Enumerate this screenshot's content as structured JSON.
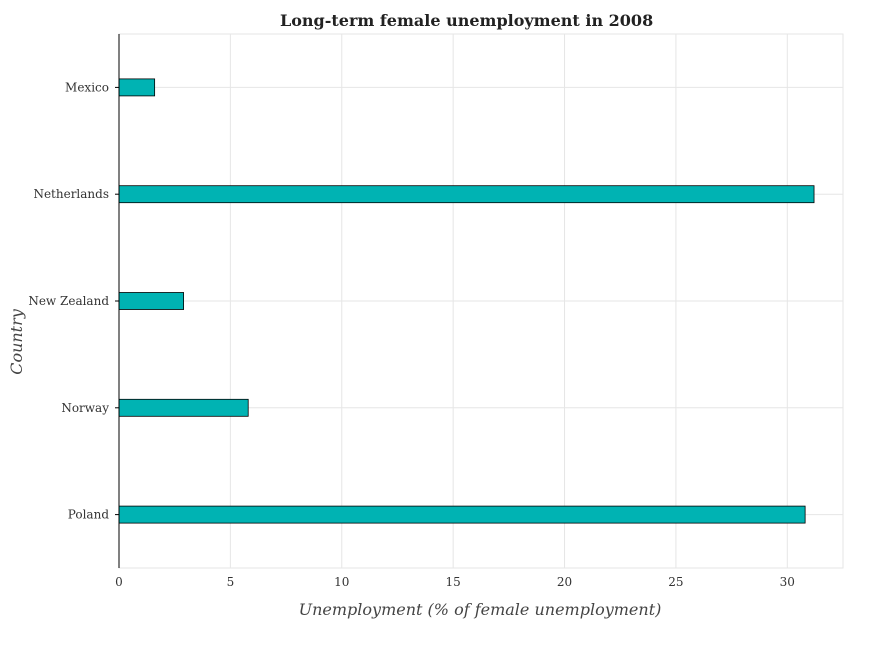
{
  "chart_data": {
    "type": "bar",
    "orientation": "horizontal",
    "title": "Long-term female unemployment in 2008",
    "xlabel": "Unemployment (% of female unemployment)",
    "ylabel": "Country",
    "categories": [
      "Mexico",
      "Netherlands",
      "New Zealand",
      "Norway",
      "Poland"
    ],
    "values": [
      1.6,
      31.2,
      2.9,
      5.8,
      30.8
    ],
    "xlim": [
      0,
      32.5
    ],
    "xticks": [
      0,
      5,
      10,
      15,
      20,
      25,
      30
    ],
    "grid": true,
    "bar_color": "#00b3b3"
  }
}
